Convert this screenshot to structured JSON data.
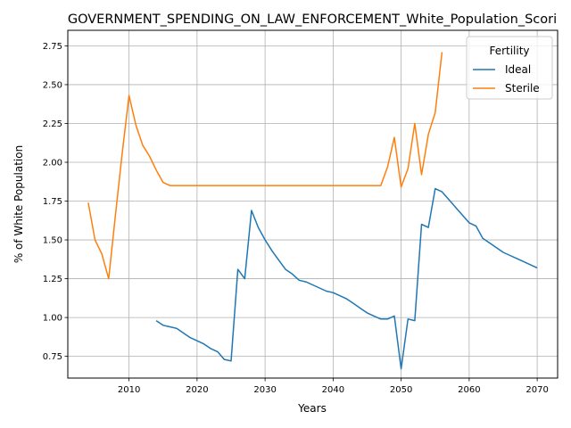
{
  "chart_data": {
    "type": "line",
    "title": "GOVERNMENT_SPENDING_ON_LAW_ENFORCEMENT_White_Population_Scori",
    "xlabel": "Years",
    "ylabel": "% of White Population",
    "xlim": [
      2001,
      2073
    ],
    "ylim": [
      0.61,
      2.85
    ],
    "xticks": [
      "2010",
      "2020",
      "2030",
      "2040",
      "2050",
      "2060",
      "2070"
    ],
    "yticks": [
      "0.75",
      "1.00",
      "1.25",
      "1.50",
      "1.75",
      "2.00",
      "2.25",
      "2.50",
      "2.75"
    ],
    "grid": true,
    "legend": {
      "title": "Fertility",
      "placement": "top-right"
    },
    "series": [
      {
        "name": "Ideal",
        "color": "#1f77b4",
        "x": [
          2014,
          2015,
          2016,
          2017,
          2018,
          2019,
          2020,
          2021,
          2022,
          2023,
          2024,
          2025,
          2026,
          2027,
          2028,
          2029,
          2030,
          2031,
          2032,
          2033,
          2034,
          2035,
          2036,
          2037,
          2038,
          2039,
          2040,
          2041,
          2042,
          2043,
          2044,
          2045,
          2046,
          2047,
          2048,
          2049,
          2050,
          2051,
          2052,
          2053,
          2054,
          2055,
          2056,
          2057,
          2058,
          2059,
          2060,
          2061,
          2062,
          2063,
          2064,
          2065,
          2066,
          2067,
          2068,
          2069,
          2070
        ],
        "values": [
          0.98,
          0.95,
          0.94,
          0.93,
          0.9,
          0.87,
          0.85,
          0.83,
          0.8,
          0.78,
          0.73,
          0.72,
          1.31,
          1.25,
          1.69,
          1.58,
          1.5,
          1.43,
          1.37,
          1.31,
          1.28,
          1.24,
          1.23,
          1.21,
          1.19,
          1.17,
          1.16,
          1.14,
          1.12,
          1.09,
          1.06,
          1.03,
          1.01,
          0.99,
          0.99,
          1.01,
          0.67,
          0.99,
          0.98,
          1.6,
          1.58,
          1.83,
          1.81,
          1.76,
          1.71,
          1.66,
          1.61,
          1.59,
          1.51,
          1.48,
          1.45,
          1.42,
          1.4,
          1.38,
          1.36,
          1.34,
          1.32
        ]
      },
      {
        "name": "Sterile",
        "color": "#ff7f0e",
        "x": [
          2004,
          2005,
          2006,
          2007,
          2008,
          2009,
          2010,
          2011,
          2012,
          2013,
          2014,
          2015,
          2016,
          2017,
          2018,
          2019,
          2020,
          2021,
          2022,
          2023,
          2024,
          2025,
          2026,
          2027,
          2028,
          2029,
          2030,
          2031,
          2032,
          2033,
          2034,
          2035,
          2036,
          2037,
          2038,
          2039,
          2040,
          2041,
          2042,
          2043,
          2044,
          2045,
          2046,
          2047,
          2048,
          2049,
          2050,
          2051,
          2052,
          2053,
          2054,
          2055,
          2056
        ],
        "values": [
          1.74,
          1.5,
          1.41,
          1.25,
          1.66,
          2.06,
          2.43,
          2.24,
          2.11,
          2.04,
          1.95,
          1.87,
          1.85,
          1.85,
          1.85,
          1.85,
          1.85,
          1.85,
          1.85,
          1.85,
          1.85,
          1.85,
          1.85,
          1.85,
          1.85,
          1.85,
          1.85,
          1.85,
          1.85,
          1.85,
          1.85,
          1.85,
          1.85,
          1.85,
          1.85,
          1.85,
          1.85,
          1.85,
          1.85,
          1.85,
          1.85,
          1.85,
          1.85,
          1.85,
          1.97,
          2.16,
          1.84,
          1.96,
          2.25,
          1.92,
          2.18,
          2.32,
          2.71
        ]
      }
    ]
  }
}
